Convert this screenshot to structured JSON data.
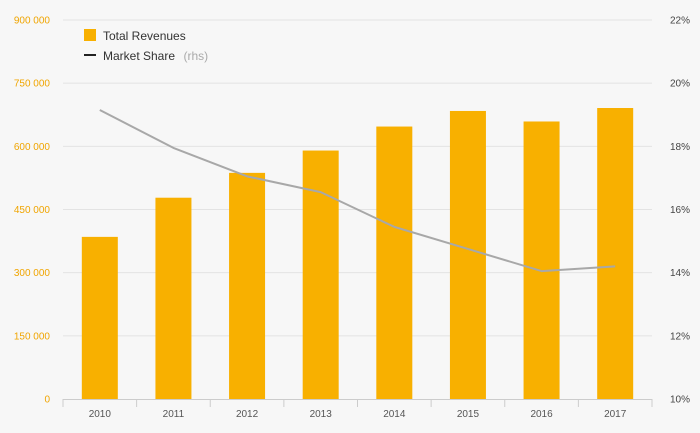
{
  "chart_data": {
    "type": "bar+line",
    "categories": [
      "2010",
      "2011",
      "2012",
      "2013",
      "2014",
      "2015",
      "2016",
      "2017"
    ],
    "series": [
      {
        "name": "Total Revenues",
        "kind": "bar",
        "axis": "left",
        "color": "#f8b000",
        "values": [
          385000,
          478000,
          537000,
          590000,
          647000,
          684000,
          659000,
          691000
        ]
      },
      {
        "name": "Market Share",
        "name_suffix": "(rhs)",
        "kind": "line",
        "axis": "right",
        "color": "#a8a8a8",
        "legend_color": "#222222",
        "values": [
          19.15,
          17.95,
          17.05,
          16.55,
          15.45,
          14.75,
          14.05,
          14.2
        ]
      }
    ],
    "y_left": {
      "range": [
        0,
        900000
      ],
      "ticks": [
        0,
        150000,
        300000,
        450000,
        600000,
        750000,
        900000
      ],
      "tick_labels": [
        "0",
        "150 000",
        "300 000",
        "450 000",
        "600 000",
        "750 000",
        "900 000"
      ],
      "label_color": "#f0a500"
    },
    "y_right": {
      "range": [
        10,
        22
      ],
      "ticks": [
        10,
        12,
        14,
        16,
        18,
        20,
        22
      ],
      "tick_labels": [
        "10%",
        "12%",
        "14%",
        "16%",
        "18%",
        "20%",
        "22%"
      ]
    },
    "grid": true,
    "legend_position": "top-left"
  }
}
